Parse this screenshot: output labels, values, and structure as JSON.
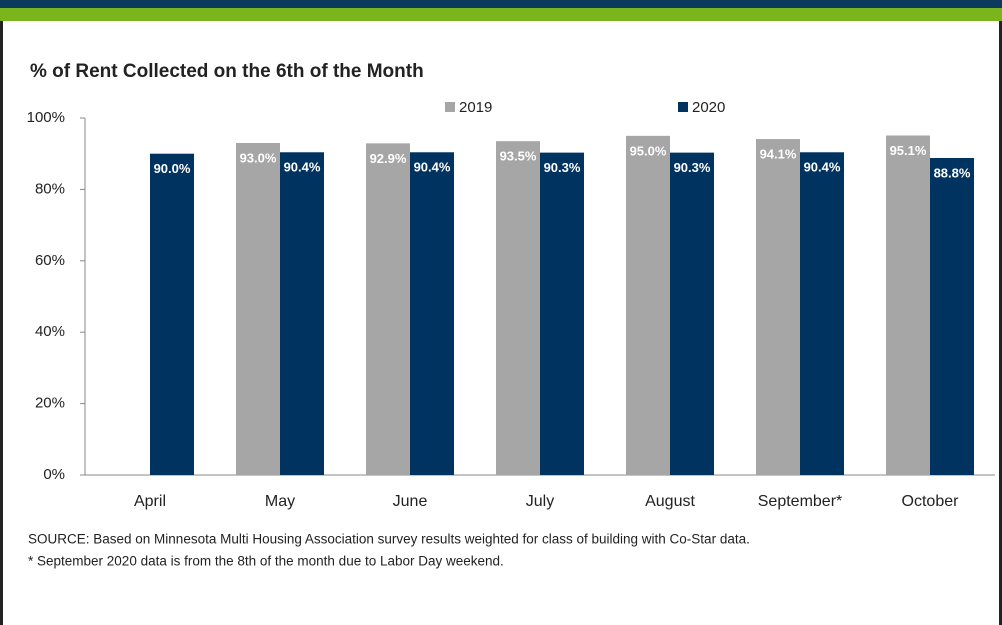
{
  "chart_data": {
    "type": "bar",
    "title": "% of Rent Collected on the 6th of the Month",
    "categories": [
      "April",
      "May",
      "June",
      "July",
      "August",
      "September*",
      "October"
    ],
    "series": [
      {
        "name": "2019",
        "color": "#a6a6a6",
        "values": [
          null,
          93.0,
          92.9,
          93.5,
          95.0,
          94.1,
          95.1
        ],
        "value_labels": [
          null,
          "93.0%",
          "92.9%",
          "93.5%",
          "95.0%",
          "94.1%",
          "95.1%"
        ]
      },
      {
        "name": "2020",
        "color": "#00335f",
        "values": [
          90.0,
          90.4,
          90.4,
          90.3,
          90.3,
          90.4,
          88.8
        ],
        "value_labels": [
          "90.0%",
          "90.4%",
          "90.4%",
          "90.3%",
          "90.3%",
          "90.4%",
          "88.8%"
        ]
      }
    ],
    "ylim": [
      0,
      100
    ],
    "yticks": [
      {
        "value": 0,
        "label": "0%"
      },
      {
        "value": 20,
        "label": "20%"
      },
      {
        "value": 40,
        "label": "40%"
      },
      {
        "value": 60,
        "label": "60%"
      },
      {
        "value": 80,
        "label": "80%"
      },
      {
        "value": 100,
        "label": "100%"
      }
    ],
    "legend": "top",
    "notes": [
      "SOURCE:  Based on Minnesota Multi Housing Association survey results weighted for class of building with Co-Star data.",
      "* September 2020 data is from the 8th of the month due to Labor Day weekend."
    ]
  }
}
